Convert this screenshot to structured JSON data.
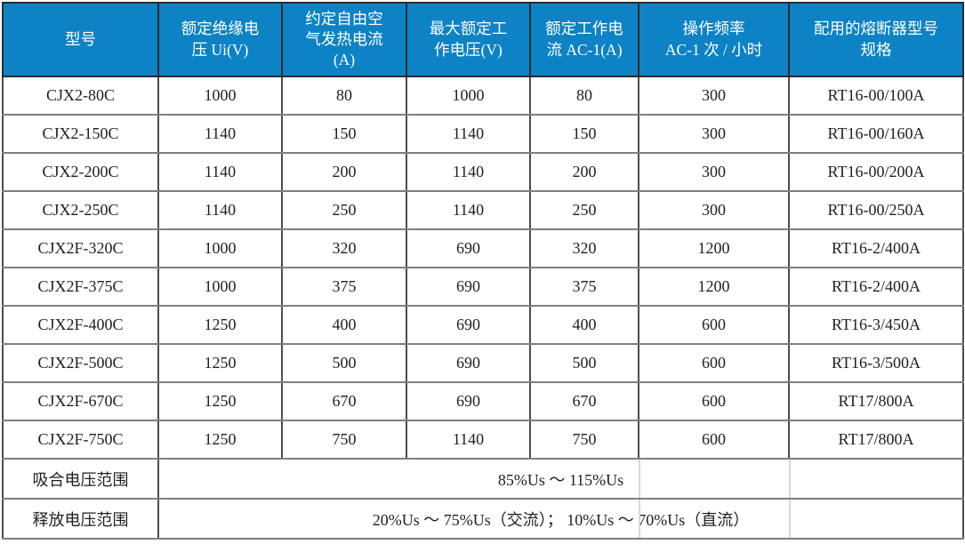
{
  "colors": {
    "header_bg": "#0D82C4",
    "header_text": "#FFFFFF",
    "body_text": "#1F1F1F",
    "grid_horizontal": "#7F7F7F",
    "grid_vertical": "#4D4D4D",
    "outer_border": "#333333",
    "faint_divider": "#D9D9D9",
    "page_bg": "#FFFFFF"
  },
  "table": {
    "columns": [
      "型号",
      "额定绝缘电\n压 Ui(V)",
      "约定自由空\n气发热电流\n(A)",
      "最大额定工\n作电压(V)",
      "额定工作电\n流 AC-1(A)",
      "操作频率\nAC-1 次 / 小时",
      "配用的熔断器型号\n规格"
    ],
    "rows": [
      [
        "CJX2-80C",
        "1000",
        "80",
        "1000",
        "80",
        "300",
        "RT16-00/100A"
      ],
      [
        "CJX2-150C",
        "1140",
        "150",
        "1140",
        "150",
        "300",
        "RT16-00/160A"
      ],
      [
        "CJX2-200C",
        "1140",
        "200",
        "1140",
        "200",
        "300",
        "RT16-00/200A"
      ],
      [
        "CJX2-250C",
        "1140",
        "250",
        "1140",
        "250",
        "300",
        "RT16-00/250A"
      ],
      [
        "CJX2F-320C",
        "1000",
        "320",
        "690",
        "320",
        "1200",
        "RT16-2/400A"
      ],
      [
        "CJX2F-375C",
        "1000",
        "375",
        "690",
        "375",
        "1200",
        "RT16-2/400A"
      ],
      [
        "CJX2F-400C",
        "1250",
        "400",
        "690",
        "400",
        "600",
        "RT16-3/450A"
      ],
      [
        "CJX2F-500C",
        "1250",
        "500",
        "690",
        "500",
        "600",
        "RT16-3/500A"
      ],
      [
        "CJX2F-670C",
        "1250",
        "670",
        "690",
        "670",
        "600",
        "RT17/800A"
      ],
      [
        "CJX2F-750C",
        "1250",
        "750",
        "1140",
        "750",
        "600",
        "RT17/800A"
      ]
    ],
    "footer": [
      {
        "label": "吸合电压范围",
        "value": "85%Us ～ 115%Us"
      },
      {
        "label": "释放电压范围",
        "value": "20%Us ～ 75%Us（交流）； 10%Us ～ 70%Us（直流）"
      }
    ]
  }
}
